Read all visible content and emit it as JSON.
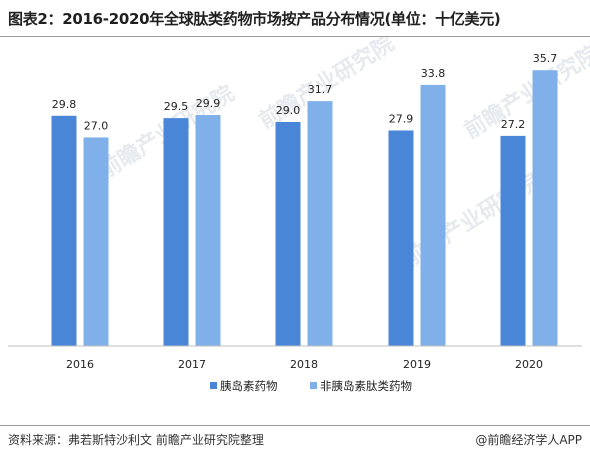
{
  "header": {
    "title": "图表2：2016-2020年全球肽类药物市场按产品分布情况(单位：十亿美元)"
  },
  "footer": {
    "source": "资料来源：弗若斯特沙利文 前瞻产业研究院整理",
    "brand": "@前瞻经济学人APP"
  },
  "watermark": {
    "text": "前瞻产业研究院",
    "color": "#c9d2dc"
  },
  "chart_data": {
    "type": "bar",
    "title": "图表2：2016-2020年全球肽类药物市场按产品分布情况(单位：十亿美元)",
    "xlabel": "",
    "ylabel": "",
    "unit": "十亿美元",
    "categories": [
      "2016",
      "2017",
      "2018",
      "2019",
      "2020"
    ],
    "series": [
      {
        "name": "胰岛素药物",
        "values": [
          29.8,
          29.5,
          29.0,
          27.9,
          27.2
        ],
        "color": "#4a86d8"
      },
      {
        "name": "非胰岛素肽类药物",
        "values": [
          27.0,
          29.9,
          31.7,
          33.8,
          35.7
        ],
        "color": "#7fb0ea"
      }
    ],
    "ylim": [
      0,
      40
    ],
    "grid": false,
    "legend": "bottom",
    "data_labels": true
  }
}
